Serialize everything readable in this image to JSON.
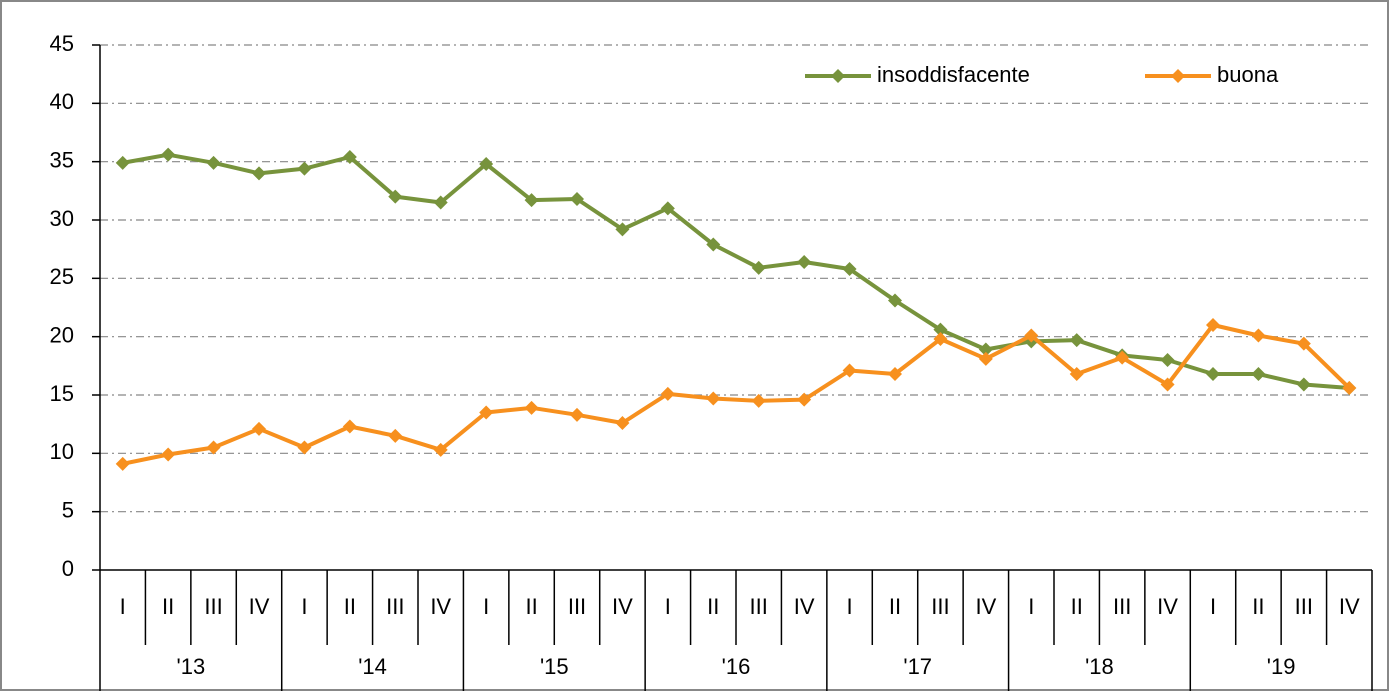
{
  "chart_data": {
    "type": "line",
    "categories": [
      "I",
      "II",
      "III",
      "IV",
      "I",
      "II",
      "III",
      "IV",
      "I",
      "II",
      "III",
      "IV",
      "I",
      "II",
      "III",
      "IV",
      "I",
      "II",
      "III",
      "IV",
      "I",
      "II",
      "III",
      "IV",
      "I",
      "II",
      "III",
      "IV"
    ],
    "groups": [
      "'13",
      "'14",
      "'15",
      "'16",
      "'17",
      "'18",
      "'19"
    ],
    "series": [
      {
        "name": "insoddisfacente",
        "color": "#77933c",
        "values": [
          34.9,
          35.6,
          34.9,
          34.0,
          34.4,
          35.4,
          32.0,
          31.5,
          34.8,
          31.7,
          31.8,
          29.2,
          31.0,
          27.9,
          25.9,
          26.4,
          25.8,
          23.1,
          20.6,
          18.9,
          19.6,
          19.7,
          18.4,
          18.0,
          16.8,
          16.8,
          15.9,
          15.6
        ]
      },
      {
        "name": "buona",
        "color": "#f7901e",
        "values": [
          9.1,
          9.9,
          10.5,
          12.1,
          10.5,
          12.3,
          11.5,
          10.3,
          13.5,
          13.9,
          13.3,
          12.6,
          15.1,
          14.7,
          14.5,
          14.6,
          17.1,
          16.8,
          19.8,
          18.1,
          20.1,
          16.8,
          18.2,
          15.9,
          21.0,
          20.1,
          19.4,
          15.6
        ]
      }
    ],
    "ylim": [
      0,
      45
    ],
    "yticks": [
      0,
      5,
      10,
      15,
      20,
      25,
      30,
      35,
      40,
      45
    ],
    "grid": true,
    "legend": "top-right"
  }
}
